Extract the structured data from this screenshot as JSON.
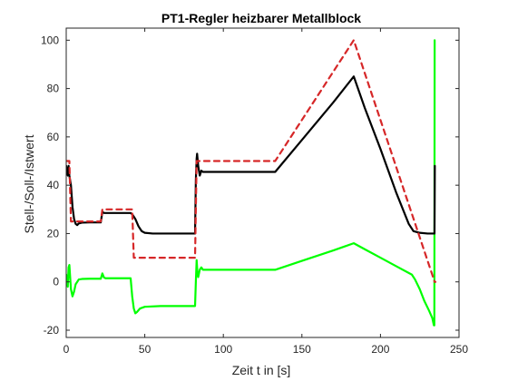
{
  "chart_data": {
    "type": "line",
    "title": "PT1-Regler heizbarer Metallblock",
    "xlabel": "Zeit t in [s]",
    "ylabel": "Stell-/Soll-/Istwert",
    "xlim": [
      0,
      250
    ],
    "ylim": [
      -23,
      105
    ],
    "xticks": [
      0,
      50,
      100,
      150,
      200,
      250
    ],
    "yticks": [
      -20,
      0,
      20,
      40,
      60,
      80,
      100
    ],
    "grid": false,
    "legend": "none",
    "series": [
      {
        "color": "#00ff00",
        "style": "solid",
        "points": [
          [
            0,
            3
          ],
          [
            1,
            -2
          ],
          [
            1.5,
            6
          ],
          [
            2,
            7
          ],
          [
            2.5,
            2
          ],
          [
            3,
            -3
          ],
          [
            4,
            -6
          ],
          [
            5,
            -4
          ],
          [
            6,
            -1
          ],
          [
            7,
            0
          ],
          [
            8,
            1
          ],
          [
            10,
            1.2
          ],
          [
            15,
            1.3
          ],
          [
            22,
            1.3
          ],
          [
            23,
            3.5
          ],
          [
            24,
            1.8
          ],
          [
            25,
            1.5
          ],
          [
            30,
            1.5
          ],
          [
            40,
            1.5
          ],
          [
            41,
            1.5
          ],
          [
            42,
            -6
          ],
          [
            43,
            -11
          ],
          [
            44,
            -13
          ],
          [
            45,
            -12.5
          ],
          [
            47,
            -11
          ],
          [
            50,
            -10.3
          ],
          [
            60,
            -10
          ],
          [
            70,
            -10
          ],
          [
            82,
            -10
          ],
          [
            82.5,
            0
          ],
          [
            83,
            9
          ],
          [
            83.5,
            4
          ],
          [
            84,
            2
          ],
          [
            85,
            5
          ],
          [
            86,
            6
          ],
          [
            87,
            5
          ],
          [
            90,
            5
          ],
          [
            100,
            5
          ],
          [
            120,
            5
          ],
          [
            133,
            5
          ],
          [
            150,
            8.7
          ],
          [
            170,
            13
          ],
          [
            183,
            16
          ],
          [
            190,
            13.5
          ],
          [
            200,
            10
          ],
          [
            210,
            6.5
          ],
          [
            220,
            3
          ],
          [
            222,
            1
          ],
          [
            225,
            -3
          ],
          [
            228,
            -8
          ],
          [
            231,
            -12
          ],
          [
            233,
            -15
          ],
          [
            234,
            -18
          ],
          [
            234.3,
            -18
          ],
          [
            234.5,
            100
          ]
        ]
      },
      {
        "color": "#000000",
        "style": "solid",
        "points": [
          [
            0,
            48
          ],
          [
            0.5,
            46
          ],
          [
            1,
            44
          ],
          [
            1.5,
            48
          ],
          [
            2,
            44
          ],
          [
            3,
            40
          ],
          [
            4,
            31
          ],
          [
            5,
            26
          ],
          [
            6,
            24
          ],
          [
            7,
            23.5
          ],
          [
            8,
            24.2
          ],
          [
            10,
            24.5
          ],
          [
            15,
            24.6
          ],
          [
            22,
            24.6
          ],
          [
            23,
            29
          ],
          [
            24,
            28.5
          ],
          [
            25,
            28.5
          ],
          [
            30,
            28.5
          ],
          [
            41,
            28.5
          ],
          [
            42,
            28
          ],
          [
            44,
            26
          ],
          [
            46,
            23
          ],
          [
            48,
            21
          ],
          [
            50,
            20.3
          ],
          [
            55,
            20
          ],
          [
            70,
            20
          ],
          [
            82,
            20
          ],
          [
            82.5,
            42
          ],
          [
            83,
            51
          ],
          [
            83.3,
            53
          ],
          [
            84,
            48
          ],
          [
            85,
            44
          ],
          [
            86,
            46
          ],
          [
            87,
            45.5
          ],
          [
            90,
            45.5
          ],
          [
            100,
            45.5
          ],
          [
            120,
            45.5
          ],
          [
            133,
            45.5
          ],
          [
            150,
            58.7
          ],
          [
            170,
            74.3
          ],
          [
            183,
            85
          ],
          [
            190,
            72
          ],
          [
            200,
            55
          ],
          [
            210,
            37
          ],
          [
            218,
            24
          ],
          [
            221,
            21
          ],
          [
            225,
            20.3
          ],
          [
            230,
            20
          ],
          [
            234.4,
            20
          ],
          [
            234.6,
            48
          ]
        ]
      },
      {
        "color": "#d62728",
        "style": "dashed",
        "points": [
          [
            0,
            50
          ],
          [
            2,
            50
          ],
          [
            3,
            25
          ],
          [
            22,
            25
          ],
          [
            23,
            30
          ],
          [
            42,
            30
          ],
          [
            43,
            10
          ],
          [
            82,
            10
          ],
          [
            83,
            50
          ],
          [
            133,
            50
          ],
          [
            183,
            100
          ],
          [
            234.5,
            0
          ],
          [
            235,
            0
          ]
        ]
      }
    ]
  }
}
